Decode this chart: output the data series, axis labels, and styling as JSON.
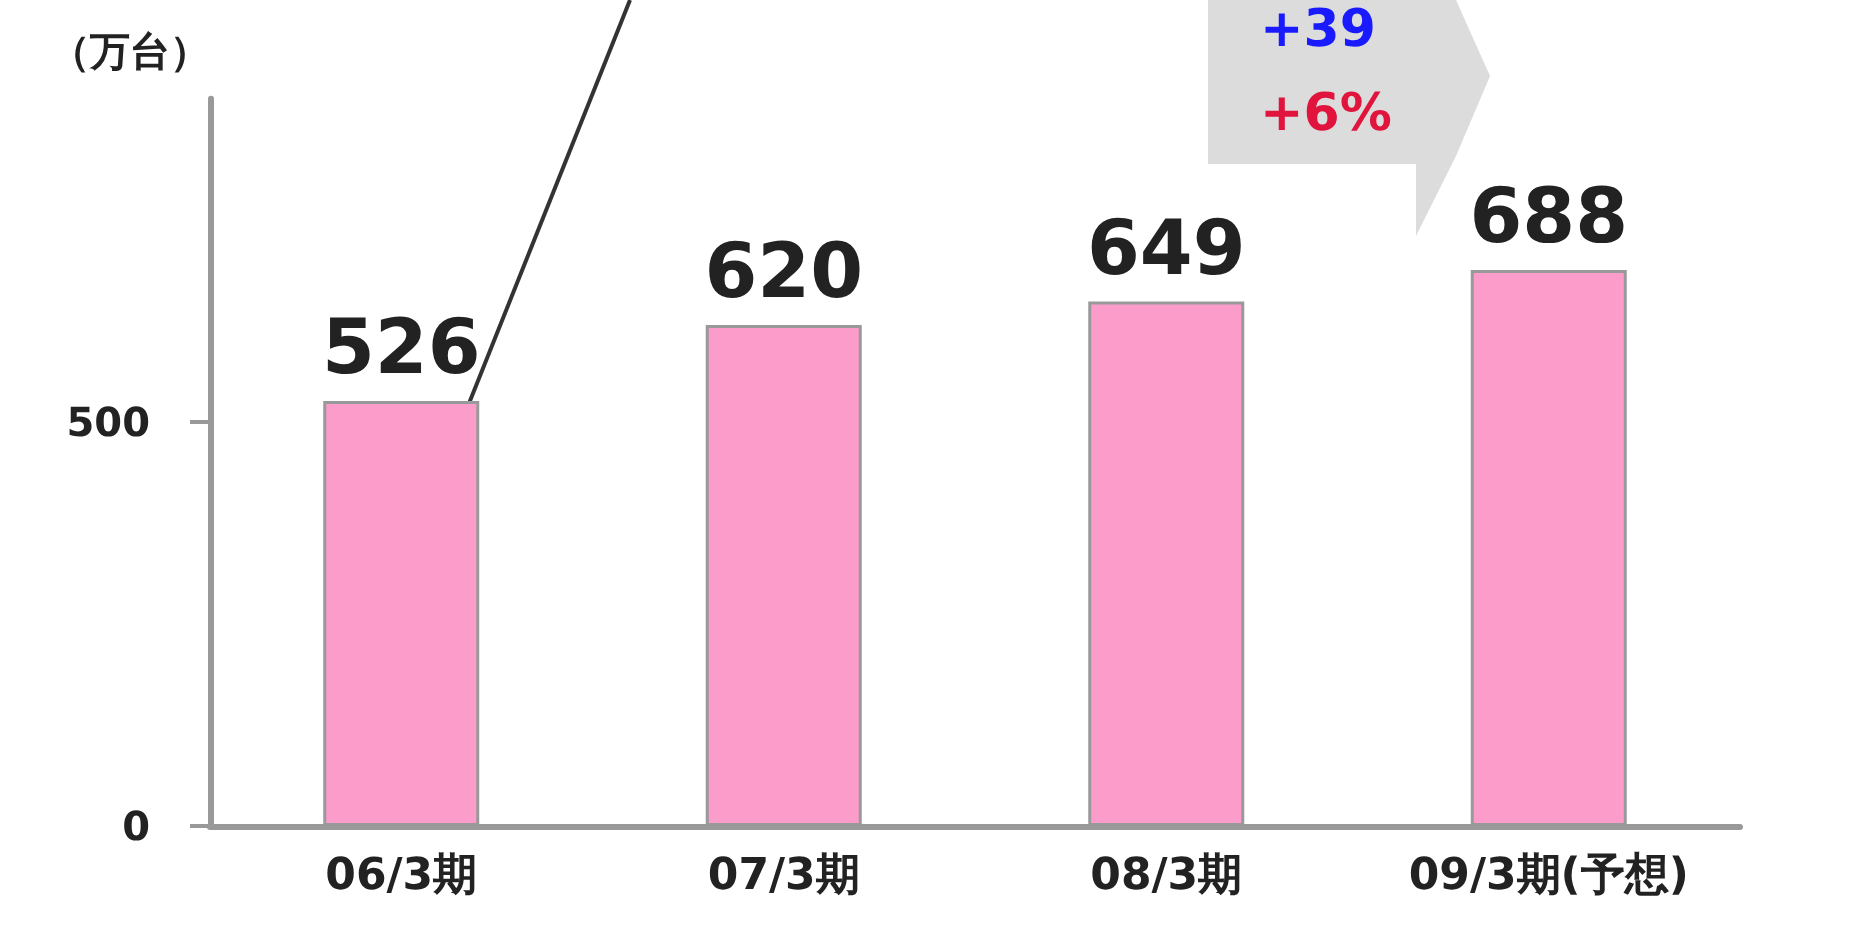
{
  "chart_data": {
    "type": "bar",
    "ylabel": "（万台）",
    "categories": [
      "06/3期",
      "07/3期",
      "08/3期",
      "09/3期(予想)"
    ],
    "values": [
      526,
      620,
      649,
      688
    ],
    "color": "#fc9ccb",
    "ylim": [
      0,
      900
    ],
    "yticks": [
      0,
      500
    ],
    "grid": false,
    "data_labels": true,
    "annotations": [
      "+39",
      "+6%"
    ]
  }
}
